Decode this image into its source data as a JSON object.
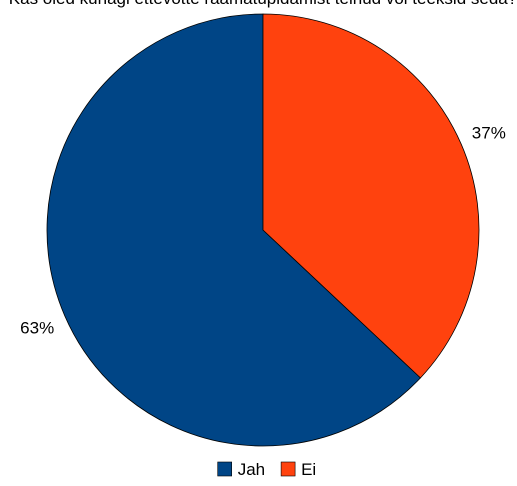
{
  "chart_data": {
    "type": "pie",
    "title": "Kas oled kunagi ettevõtte raamatupidamist teinud või teeksid seda?",
    "slices": [
      {
        "label": "Jah",
        "value": 63,
        "display": "63%",
        "color": "#004586"
      },
      {
        "label": "Ei",
        "value": 37,
        "display": "37%",
        "color": "#ff420e"
      }
    ],
    "legend": {
      "position": "bottom",
      "items": [
        "Jah",
        "Ei"
      ]
    }
  }
}
